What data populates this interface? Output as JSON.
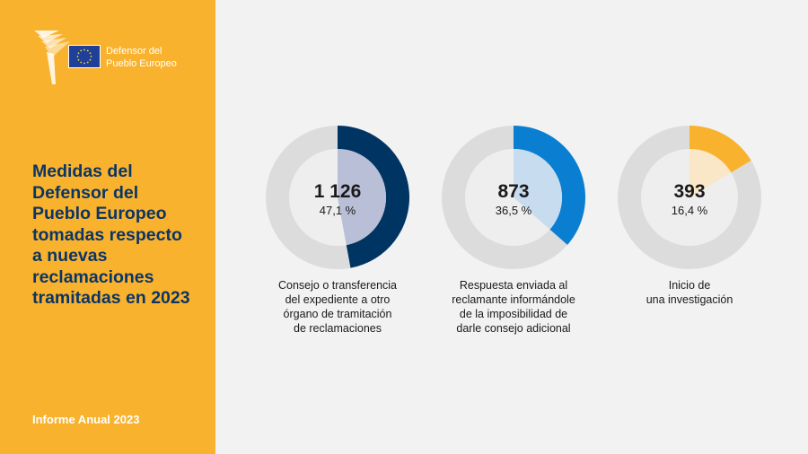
{
  "brand": {
    "logo_line1": "Defensor del",
    "logo_line2": "Pueblo Europeo",
    "logo_icon": "ombudsman-swan-icon",
    "flag_icon": "eu-flag-icon"
  },
  "side": {
    "title_lines": [
      "Medidas del",
      "Defensor del",
      "Pueblo Europeo",
      "tomadas respecto",
      "a nuevas",
      "reclamaciones",
      "tramitadas en 2023"
    ],
    "footer": "Informe Anual 2023"
  },
  "colors": {
    "sidebar": "#f9b22d",
    "title": "#0b3566",
    "ring_track": "#dcdcdc",
    "inner_disc": "#eeeeee"
  },
  "chart_data": {
    "type": "pie",
    "donuts": [
      {
        "count": "1 126",
        "percent_label": "47,1 %",
        "value": 47.1,
        "color": "#003462",
        "light_color": "#b9bfd6",
        "caption_lines": [
          "Consejo o transferencia",
          "del expediente a otro",
          "órgano de tramitación",
          "de reclamaciones"
        ]
      },
      {
        "count": "873",
        "percent_label": "36,5 %",
        "value": 36.5,
        "color": "#0a7fd1",
        "light_color": "#c8dcef",
        "caption_lines": [
          "Respuesta enviada al",
          "reclamante informándole",
          "de la imposibilidad de",
          "darle consejo adicional"
        ]
      },
      {
        "count": "393",
        "percent_label": "16,4 %",
        "value": 16.4,
        "color": "#f9b22d",
        "light_color": "#f9e7c8",
        "caption_lines": [
          "Inicio de",
          "una investigación"
        ]
      }
    ]
  }
}
